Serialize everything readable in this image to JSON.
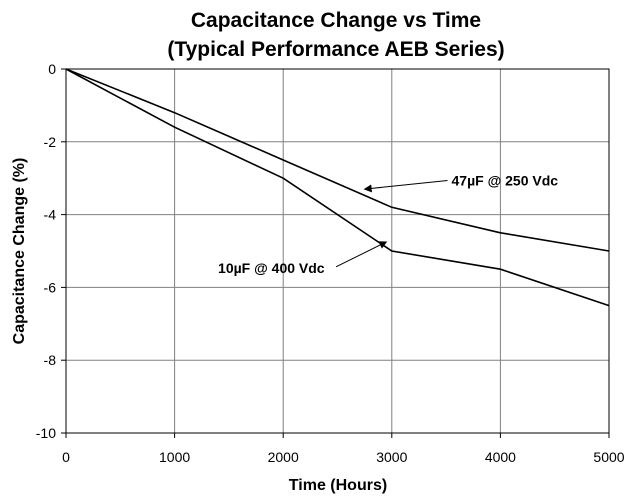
{
  "chart_data": {
    "type": "line",
    "title": "Capacitance Change vs Time",
    "subtitle": "(Typical Performance AEB Series)",
    "xlabel": "Time (Hours)",
    "ylabel": "Capacitance Change (%)",
    "xlim": [
      0,
      5000
    ],
    "ylim": [
      -10,
      0
    ],
    "x_ticks": [
      0,
      1000,
      2000,
      3000,
      4000,
      5000
    ],
    "y_ticks": [
      0,
      -2,
      -4,
      -6,
      -8,
      -10
    ],
    "x_tick_labels": [
      "0",
      "1000",
      "2000",
      "3000",
      "4000",
      "5000"
    ],
    "y_tick_labels": [
      "0",
      "-2",
      "-4",
      "-6",
      "-8",
      "-10"
    ],
    "grid": true,
    "series": [
      {
        "name": "47µF @ 250 Vdc",
        "x": [
          0,
          1000,
          2000,
          3000,
          4000,
          5000
        ],
        "y": [
          0,
          -1.2,
          -2.5,
          -3.8,
          -4.5,
          -5.0
        ]
      },
      {
        "name": "10µF @ 400 Vdc",
        "x": [
          0,
          1000,
          2000,
          3000,
          4000,
          5000
        ],
        "y": [
          0,
          -1.6,
          -3.0,
          -5.0,
          -5.5,
          -6.5
        ]
      }
    ],
    "annotations": [
      {
        "text": "47µF @ 250 Vdc",
        "series": 0,
        "arrow_to": [
          2750,
          -3.3
        ],
        "text_at": [
          3550,
          -3.2
        ]
      },
      {
        "text": "10µF @ 400 Vdc",
        "series": 1,
        "arrow_to": [
          2950,
          -4.75
        ],
        "text_at": [
          1400,
          -5.6
        ]
      }
    ]
  }
}
